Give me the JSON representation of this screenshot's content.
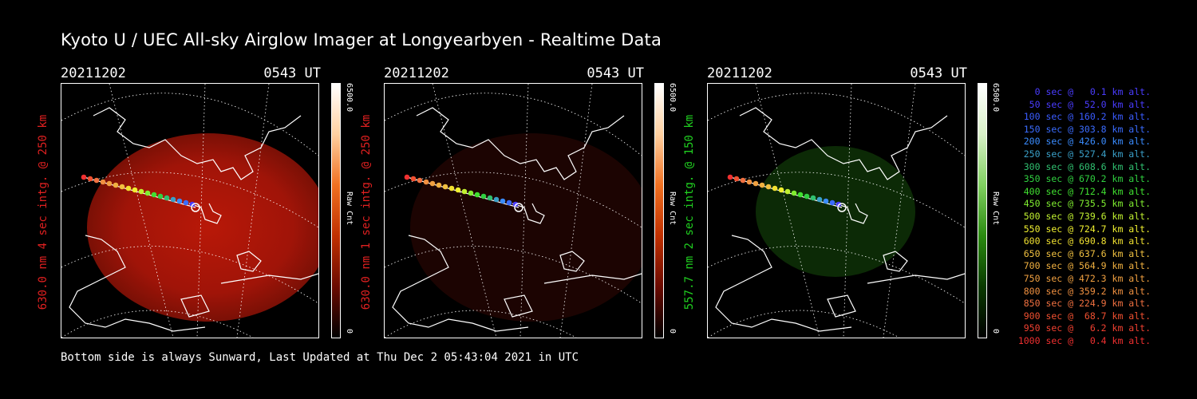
{
  "title": "Kyoto U / UEC All-sky Airglow Imager at Longyearbyen - Realtime Data",
  "footer": "Bottom side is always Sunward, Last Updated at Thu Dec  2 05:43:04 2021 in UTC",
  "panels": [
    {
      "date": "20211202",
      "time": "0543 UT",
      "ylabel": "630.0 nm 4 sec intg. @ 250 km",
      "label_color": "#e02020",
      "cb_max": "6500.0",
      "cb_unit": "Raw Cnt",
      "cb_min": "0",
      "colormap": "red",
      "image_intensity": "high"
    },
    {
      "date": "20211202",
      "time": "0543 UT",
      "ylabel": "630.0 nm 1 sec intg. @ 250 km",
      "label_color": "#e02020",
      "cb_max": "6500.0",
      "cb_unit": "Raw Cnt",
      "cb_min": "0",
      "colormap": "red",
      "image_intensity": "low"
    },
    {
      "date": "20211202",
      "time": "0543 UT",
      "ylabel": "557.7 nm 2 sec intg. @ 150 km",
      "label_color": "#20d020",
      "cb_max": "6500.0",
      "cb_unit": "Raw Cnt",
      "cb_min": "0",
      "colormap": "green",
      "image_intensity": "low"
    }
  ],
  "legend": [
    {
      "text": "   0 sec @   0.1 km alt.",
      "color": "#4a3cff"
    },
    {
      "text": "  50 sec @  52.0 km alt.",
      "color": "#4a3cff"
    },
    {
      "text": " 100 sec @ 160.2 km alt.",
      "color": "#3a5cff"
    },
    {
      "text": " 150 sec @ 303.8 km alt.",
      "color": "#3a6cff"
    },
    {
      "text": " 200 sec @ 426.0 km alt.",
      "color": "#3a8cff"
    },
    {
      "text": " 250 sec @ 527.4 km alt.",
      "color": "#3aa0c8"
    },
    {
      "text": " 300 sec @ 608.6 km alt.",
      "color": "#30c070"
    },
    {
      "text": " 350 sec @ 670.2 km alt.",
      "color": "#30d040"
    },
    {
      "text": " 400 sec @ 712.4 km alt.",
      "color": "#40e030"
    },
    {
      "text": " 450 sec @ 735.5 km alt.",
      "color": "#80ee30"
    },
    {
      "text": " 500 sec @ 739.6 km alt.",
      "color": "#c0f030"
    },
    {
      "text": " 550 sec @ 724.7 km alt.",
      "color": "#f0f030"
    },
    {
      "text": " 600 sec @ 690.8 km alt.",
      "color": "#f0e030"
    },
    {
      "text": " 650 sec @ 637.6 km alt.",
      "color": "#f0c040"
    },
    {
      "text": " 700 sec @ 564.9 km alt.",
      "color": "#f0b040"
    },
    {
      "text": " 750 sec @ 472.3 km alt.",
      "color": "#f0a040"
    },
    {
      "text": " 800 sec @ 359.2 km alt.",
      "color": "#f09040"
    },
    {
      "text": " 850 sec @ 224.9 km alt.",
      "color": "#f07040"
    },
    {
      "text": " 900 sec @  68.7 km alt.",
      "color": "#f05030"
    },
    {
      "text": " 950 sec @   6.2 km alt.",
      "color": "#f04030"
    },
    {
      "text": "1000 sec @   0.4 km alt.",
      "color": "#f03030"
    }
  ]
}
